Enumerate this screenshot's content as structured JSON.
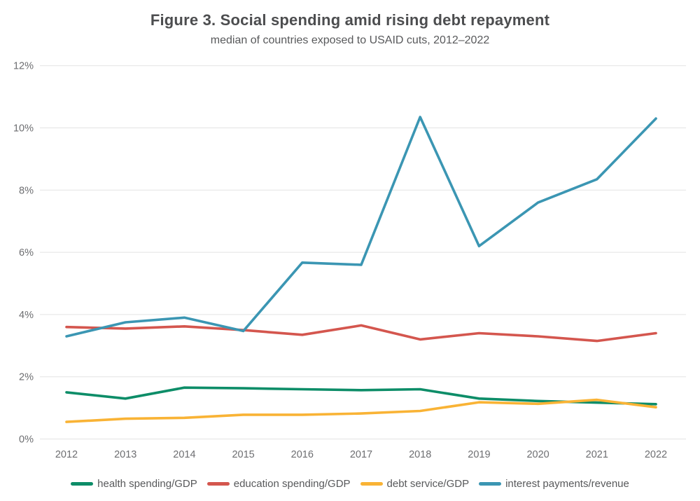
{
  "figure": {
    "title": "Figure 3. Social spending amid rising debt repayment",
    "subtitle": "median of countries exposed to USAID cuts, 2012–2022"
  },
  "colors": {
    "title_text": "#4c4d4f",
    "subtitle_text": "#58595b",
    "axis_text": "#6d6e71",
    "gridline": "#e3e3e3",
    "background": "#ffffff"
  },
  "chart_data": {
    "type": "line",
    "x": [
      2012,
      2013,
      2014,
      2015,
      2016,
      2017,
      2018,
      2019,
      2020,
      2021,
      2022
    ],
    "x_tick_labels": [
      "2012",
      "2013",
      "2014",
      "2015",
      "2016",
      "2017",
      "2018",
      "2019",
      "2020",
      "2021",
      "2022"
    ],
    "series": [
      {
        "name": "health spending/GDP",
        "color": "#0d8d68",
        "values": [
          1.5,
          1.3,
          1.65,
          1.63,
          1.6,
          1.57,
          1.6,
          1.3,
          1.22,
          1.17,
          1.12
        ]
      },
      {
        "name": "education spending/GDP",
        "color": "#d4564e",
        "values": [
          3.6,
          3.55,
          3.62,
          3.5,
          3.35,
          3.65,
          3.2,
          3.4,
          3.3,
          3.15,
          3.4
        ]
      },
      {
        "name": "debt service/GDP",
        "color": "#f9b335",
        "values": [
          0.55,
          0.65,
          0.68,
          0.78,
          0.78,
          0.82,
          0.9,
          1.18,
          1.13,
          1.26,
          1.02
        ]
      },
      {
        "name": "interest payments/revenue",
        "color": "#3b96b3",
        "values": [
          3.3,
          3.75,
          3.9,
          3.47,
          5.67,
          5.6,
          10.35,
          6.2,
          7.6,
          8.35,
          10.3
        ]
      }
    ],
    "title": "Figure 3. Social spending amid rising debt repayment",
    "subtitle": "median of countries exposed to USAID cuts, 2012–2022",
    "xlabel": "",
    "ylabel": "",
    "ylim": [
      0,
      12
    ],
    "ytick_step": 2,
    "ytick_labels": [
      "0%",
      "2%",
      "4%",
      "6%",
      "8%",
      "10%",
      "12%"
    ],
    "grid": "horizontal",
    "legend_position": "bottom"
  }
}
